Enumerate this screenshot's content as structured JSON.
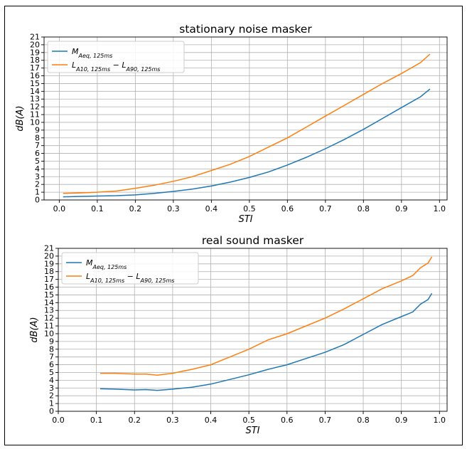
{
  "chart_data": [
    {
      "type": "line",
      "title": "stationary noise masker",
      "xlabel": "STI",
      "ylabel": "dB(A)",
      "xlim": [
        -0.04,
        1.02
      ],
      "ylim": [
        0,
        21
      ],
      "xticks": [
        0.0,
        0.1,
        0.2,
        0.3,
        0.4,
        0.5,
        0.6,
        0.7,
        0.8,
        0.9,
        1.0
      ],
      "xtick_labels": [
        "0.0",
        "0.1",
        "0.2",
        "0.3",
        "0.4",
        "0.5",
        "0.6",
        "0.7",
        "0.8",
        "0.9",
        "1.0"
      ],
      "yticks": [
        0,
        1,
        2,
        3,
        4,
        5,
        6,
        7,
        8,
        9,
        10,
        11,
        12,
        13,
        14,
        15,
        16,
        17,
        18,
        19,
        20,
        21
      ],
      "ytick_labels": [
        "0",
        "1",
        "2",
        "3",
        "4",
        "5",
        "6",
        "7",
        "8",
        "9",
        "10",
        "11",
        "12",
        "13",
        "14",
        "15",
        "16",
        "17",
        "18",
        "19",
        "20",
        "21"
      ],
      "grid": true,
      "legend_position": "top-left",
      "series": [
        {
          "name": "M_Aeq,125ms",
          "legend_main": "M",
          "legend_sub": "Aeq, 125ms",
          "color": "#1f77b4",
          "x": [
            0.01,
            0.05,
            0.1,
            0.15,
            0.2,
            0.25,
            0.3,
            0.35,
            0.4,
            0.45,
            0.5,
            0.55,
            0.6,
            0.65,
            0.7,
            0.75,
            0.8,
            0.85,
            0.9,
            0.95,
            0.975
          ],
          "y": [
            0.4,
            0.45,
            0.5,
            0.55,
            0.65,
            0.85,
            1.1,
            1.4,
            1.8,
            2.3,
            2.9,
            3.6,
            4.5,
            5.5,
            6.6,
            7.8,
            9.1,
            10.5,
            11.9,
            13.3,
            14.3
          ]
        },
        {
          "name": "L_A10,125ms − L_A90,125ms",
          "legend_main1": "L",
          "legend_sub1": "A10, 125ms",
          "legend_op": "−",
          "legend_main2": "L",
          "legend_sub2": "A90, 125ms",
          "color": "#ff7f0e",
          "x": [
            0.01,
            0.05,
            0.1,
            0.15,
            0.2,
            0.25,
            0.3,
            0.35,
            0.4,
            0.45,
            0.5,
            0.55,
            0.6,
            0.65,
            0.7,
            0.75,
            0.8,
            0.85,
            0.9,
            0.95,
            0.975
          ],
          "y": [
            0.85,
            0.9,
            1.0,
            1.15,
            1.5,
            1.9,
            2.4,
            3.0,
            3.8,
            4.6,
            5.6,
            6.8,
            8.0,
            9.4,
            10.8,
            12.2,
            13.6,
            15.0,
            16.3,
            17.7,
            18.8
          ]
        }
      ]
    },
    {
      "type": "line",
      "title": "real sound masker",
      "xlabel": "STI",
      "ylabel": "dB(A)",
      "xlim": [
        0.0,
        1.02
      ],
      "ylim": [
        0,
        21
      ],
      "xticks": [
        0.0,
        0.1,
        0.2,
        0.3,
        0.4,
        0.5,
        0.6,
        0.7,
        0.8,
        0.9,
        1.0
      ],
      "xtick_labels": [
        "0.0",
        "0.1",
        "0.2",
        "0.3",
        "0.4",
        "0.5",
        "0.6",
        "0.7",
        "0.8",
        "0.9",
        "1.0"
      ],
      "yticks": [
        0,
        1,
        2,
        3,
        4,
        5,
        6,
        7,
        8,
        9,
        10,
        11,
        12,
        13,
        14,
        15,
        16,
        17,
        18,
        19,
        20,
        21
      ],
      "ytick_labels": [
        "0",
        "1",
        "2",
        "3",
        "4",
        "5",
        "6",
        "7",
        "8",
        "9",
        "10",
        "11",
        "12",
        "13",
        "14",
        "15",
        "16",
        "17",
        "18",
        "19",
        "20",
        "21"
      ],
      "grid": true,
      "legend_position": "top-left",
      "series": [
        {
          "name": "M_Aeq,125ms",
          "legend_main": "M",
          "legend_sub": "Aeq, 125ms",
          "color": "#1f77b4",
          "x": [
            0.11,
            0.15,
            0.2,
            0.23,
            0.26,
            0.3,
            0.35,
            0.4,
            0.45,
            0.5,
            0.55,
            0.6,
            0.65,
            0.7,
            0.75,
            0.8,
            0.85,
            0.9,
            0.93,
            0.95,
            0.97,
            0.98
          ],
          "y": [
            2.9,
            2.85,
            2.75,
            2.8,
            2.7,
            2.85,
            3.1,
            3.5,
            4.1,
            4.7,
            5.4,
            6.0,
            6.8,
            7.6,
            8.6,
            9.9,
            11.2,
            12.2,
            12.8,
            13.8,
            14.4,
            15.2
          ]
        },
        {
          "name": "L_A10,125ms − L_A90,125ms",
          "legend_main1": "L",
          "legend_sub1": "A10, 125ms",
          "legend_op": "−",
          "legend_main2": "L",
          "legend_sub2": "A90, 125ms",
          "color": "#ff7f0e",
          "x": [
            0.11,
            0.15,
            0.2,
            0.23,
            0.26,
            0.3,
            0.35,
            0.4,
            0.45,
            0.5,
            0.55,
            0.6,
            0.65,
            0.7,
            0.75,
            0.8,
            0.85,
            0.9,
            0.93,
            0.95,
            0.97,
            0.98
          ],
          "y": [
            4.9,
            4.9,
            4.8,
            4.8,
            4.65,
            4.9,
            5.4,
            6.0,
            7.0,
            8.0,
            9.2,
            10.0,
            11.0,
            12.0,
            13.2,
            14.5,
            15.8,
            16.8,
            17.5,
            18.5,
            19.1,
            19.9
          ]
        }
      ]
    }
  ]
}
